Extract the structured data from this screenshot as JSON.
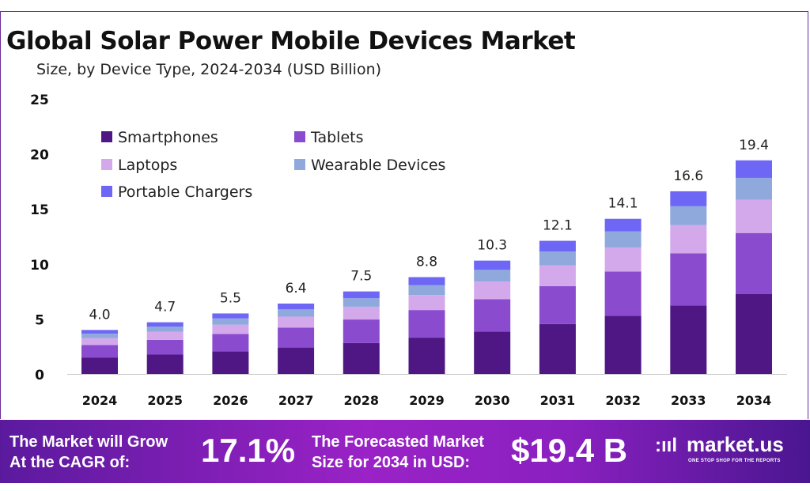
{
  "title": "Global Solar Power Mobile Devices Market",
  "subtitle": "Size, by Device Type, 2024-2034 (USD Billion)",
  "chart_data": {
    "type": "stacked-bar",
    "title": "Global Solar Power Mobile Devices Market",
    "subtitle": "Size, by Device Type, 2024-2034 (USD Billion)",
    "categories": [
      "2024",
      "2025",
      "2026",
      "2027",
      "2028",
      "2029",
      "2030",
      "2031",
      "2032",
      "2033",
      "2034"
    ],
    "totals": [
      "4.0",
      "4.7",
      "5.5",
      "6.4",
      "7.5",
      "8.8",
      "10.3",
      "12.1",
      "14.1",
      "16.6",
      "19.4"
    ],
    "ylim": [
      0,
      25
    ],
    "yticks": [
      "0",
      "5",
      "10",
      "15",
      "20",
      "25"
    ],
    "grid": false,
    "legend_position": "top-left",
    "series": [
      {
        "name": "Smartphones",
        "color": "#4e1784",
        "values": [
          1.5,
          1.76,
          2.06,
          2.4,
          2.81,
          3.3,
          3.86,
          4.54,
          5.29,
          6.23,
          7.28
        ]
      },
      {
        "name": "Tablets",
        "color": "#8a4bcf",
        "values": [
          1.14,
          1.34,
          1.57,
          1.82,
          2.14,
          2.51,
          2.94,
          3.45,
          4.02,
          4.73,
          5.53
        ]
      },
      {
        "name": "Laptops",
        "color": "#d4a9ec",
        "values": [
          0.62,
          0.73,
          0.85,
          0.99,
          1.16,
          1.36,
          1.6,
          1.88,
          2.19,
          2.57,
          3.01
        ]
      },
      {
        "name": "Wearable Devices",
        "color": "#8fa9dc",
        "values": [
          0.41,
          0.48,
          0.57,
          0.66,
          0.77,
          0.91,
          1.06,
          1.25,
          1.45,
          1.71,
          2.0
        ]
      },
      {
        "name": "Portable Chargers",
        "color": "#6e66f5",
        "values": [
          0.33,
          0.39,
          0.45,
          0.53,
          0.62,
          0.72,
          0.84,
          0.98,
          1.15,
          1.36,
          1.59
        ]
      }
    ]
  },
  "footer": {
    "cagr_label_1": "The Market will Grow",
    "cagr_label_2": "At the CAGR of:",
    "cagr_value": "17.1%",
    "forecast_label_1": "The Forecasted Market",
    "forecast_label_2": "Size for 2034 in USD:",
    "forecast_value": "$19.4 B",
    "logo_text": "market.us",
    "logo_tagline": "ONE STOP SHOP FOR THE REPORTS"
  }
}
